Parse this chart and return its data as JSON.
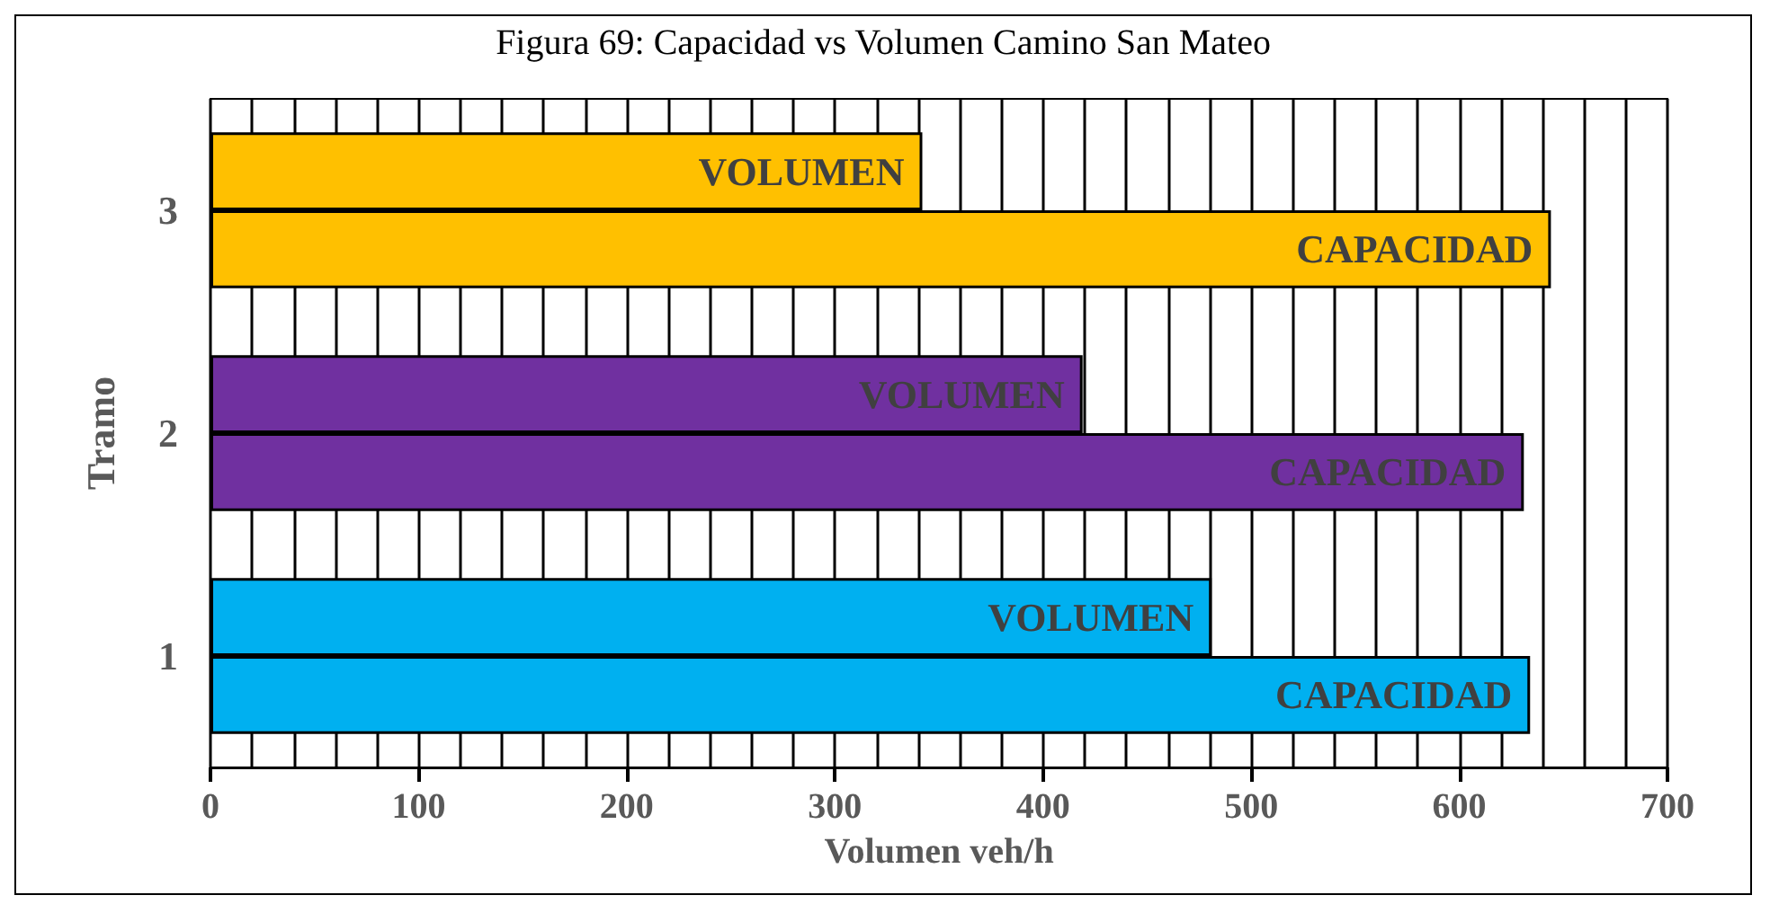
{
  "chart_data": {
    "type": "bar",
    "orientation": "horizontal",
    "title": "Figura 69: Capacidad vs Volumen Camino San Mateo",
    "xlabel": "Volumen veh/h",
    "ylabel": "Tramo",
    "categories": [
      "3",
      "2",
      "1"
    ],
    "series": [
      {
        "name": "VOLUMEN",
        "colors": [
          "#ffc000",
          "#7030a0",
          "#00b0f0"
        ],
        "values": [
          342,
          419,
          481
        ]
      },
      {
        "name": "CAPACIDAD",
        "colors": [
          "#ffc000",
          "#7030a0",
          "#00b0f0"
        ],
        "values": [
          644,
          631,
          634
        ]
      }
    ],
    "xlim": [
      0,
      700
    ],
    "xticks": [
      0,
      {
        "value": 20,
        "label": null
      },
      {
        "value": 40,
        "label": null
      },
      {
        "value": 60,
        "label": null
      },
      {
        "value": 80,
        "label": null
      },
      100,
      {
        "value": 120,
        "label": null
      },
      {
        "value": 140,
        "label": null
      },
      {
        "value": 160,
        "label": null
      },
      {
        "value": 180,
        "label": null
      },
      200,
      {
        "value": 220,
        "label": null
      },
      {
        "value": 240,
        "label": null
      },
      {
        "value": 260,
        "label": null
      },
      {
        "value": 280,
        "label": null
      },
      300,
      {
        "value": 320,
        "label": null
      },
      {
        "value": 340,
        "label": null
      },
      {
        "value": 360,
        "label": null
      },
      {
        "value": 380,
        "label": null
      },
      400,
      {
        "value": 420,
        "label": null
      },
      {
        "value": 440,
        "label": null
      },
      {
        "value": 460,
        "label": null
      },
      {
        "value": 480,
        "label": null
      },
      500,
      {
        "value": 520,
        "label": null
      },
      {
        "value": 540,
        "label": null
      },
      {
        "value": 560,
        "label": null
      },
      {
        "value": 580,
        "label": null
      },
      600,
      {
        "value": 620,
        "label": null
      },
      {
        "value": 640,
        "label": null
      },
      {
        "value": 660,
        "label": null
      },
      {
        "value": 680,
        "label": null
      },
      700
    ],
    "grid": "x",
    "legend": false
  }
}
